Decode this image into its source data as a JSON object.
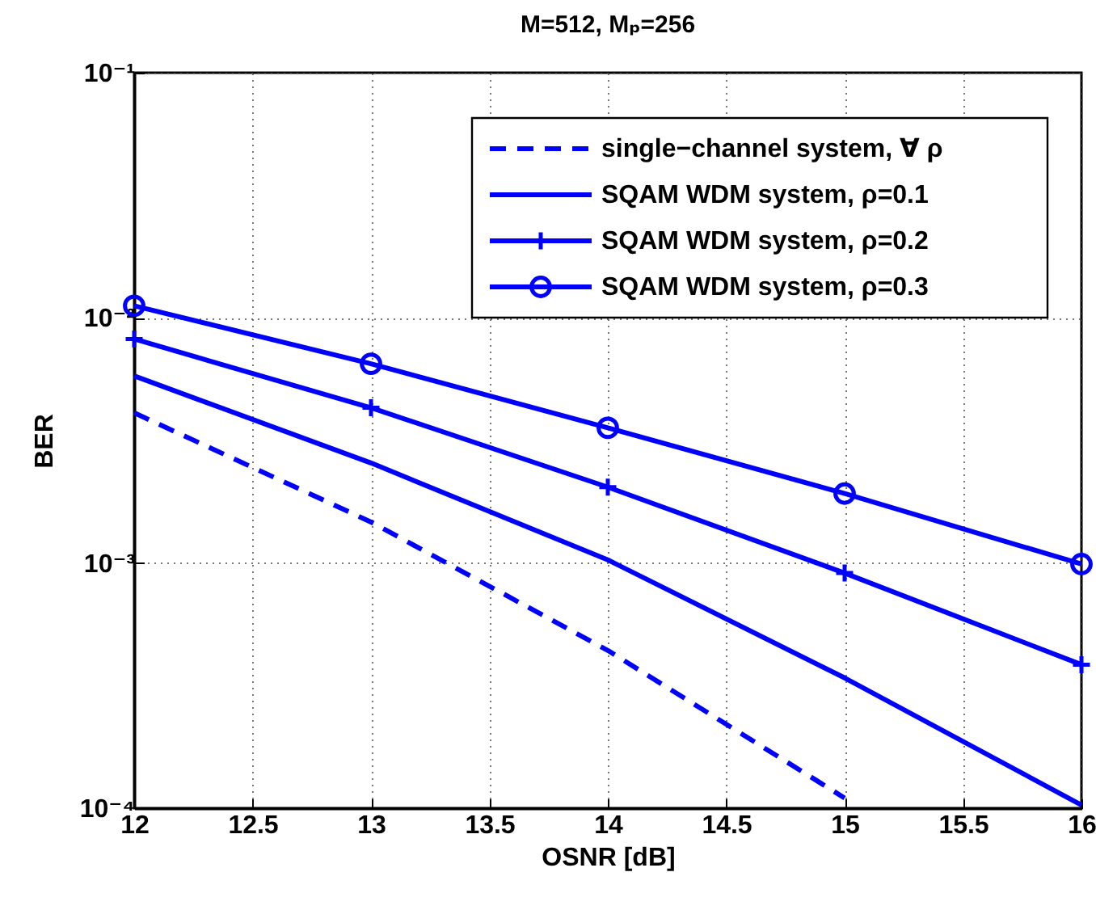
{
  "chart_data": {
    "type": "line",
    "title": "M=512, Mₚ=256",
    "xlabel": "OSNR [dB]",
    "ylabel": "BER",
    "x": [
      12,
      13,
      14,
      15,
      16
    ],
    "series": [
      {
        "name": "single−channel system, ∀ ρ",
        "color": "#0000ff",
        "line_style": "dashed",
        "values": [
          0.0041,
          0.00147,
          0.00044,
          0.00011,
          null
        ]
      },
      {
        "name": "SQAM WDM system, ρ=0.1",
        "color": "#0000ff",
        "line_style": "solid",
        "values": [
          0.0058,
          0.00256,
          0.00103,
          0.00034,
          0.000103
        ]
      },
      {
        "name": "SQAM WDM system, ρ=0.2",
        "color": "#0000ff",
        "line_style": "solid",
        "marker": "cross",
        "values": [
          0.0082,
          0.0043,
          0.00204,
          0.00091,
          0.000385
        ]
      },
      {
        "name": "SQAM WDM system, ρ=0.3",
        "color": "#0000ff",
        "line_style": "solid",
        "marker": "circle",
        "values": [
          0.0112,
          0.0065,
          0.00356,
          0.00192,
          0.00099
        ]
      }
    ],
    "log": true,
    "xlim": [
      12,
      16
    ],
    "ylim": [
      0.0001,
      0.1
    ],
    "xticks": [
      12,
      12.5,
      13,
      13.5,
      14,
      14.5,
      15,
      15.5,
      16
    ],
    "yticks": [
      {
        "value": 0.0001,
        "label": "10⁻⁴"
      },
      {
        "value": 0.001,
        "label": "10⁻³"
      },
      {
        "value": 0.01,
        "label": "10⁻²"
      },
      {
        "value": 0.1,
        "label": "10⁻¹"
      }
    ],
    "grid": true,
    "legend": "top right"
  }
}
